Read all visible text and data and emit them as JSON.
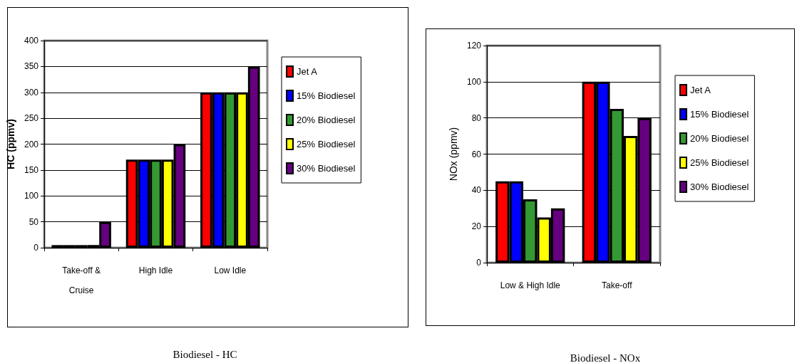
{
  "chart_data": [
    {
      "type": "bar",
      "title": "Biodiesel - HC",
      "ylabel": "HC (ppmv)",
      "categories": [
        "Take-off &\nCruise",
        "High Idle",
        "Low Idle"
      ],
      "series": [
        {
          "name": "Jet A",
          "color": "#ff0000",
          "values": [
            5,
            170,
            300
          ]
        },
        {
          "name": "15% Biodiesel",
          "color": "#0000ff",
          "values": [
            5,
            170,
            300
          ]
        },
        {
          "name": "20% Biodiesel",
          "color": "#339933",
          "values": [
            5,
            170,
            300
          ]
        },
        {
          "name": "25% Biodiesel",
          "color": "#ffff00",
          "values": [
            5,
            170,
            300
          ]
        },
        {
          "name": "30% Biodiesel",
          "color": "#660080",
          "values": [
            50,
            200,
            350
          ]
        }
      ],
      "ylim": [
        0,
        400
      ],
      "yticks": [
        0,
        50,
        100,
        150,
        200,
        250,
        300,
        350,
        400
      ],
      "grid": "y",
      "legend": "right"
    },
    {
      "type": "bar",
      "title": "Biodiesel - NOx",
      "ylabel": "NOx (ppmv)",
      "categories": [
        "Low & High Idle",
        "Take-off"
      ],
      "series": [
        {
          "name": "Jet A",
          "color": "#ff0000",
          "values": [
            45,
            100
          ]
        },
        {
          "name": "15% Biodiesel",
          "color": "#0000ff",
          "values": [
            45,
            100
          ]
        },
        {
          "name": "20% Biodiesel",
          "color": "#339933",
          "values": [
            35,
            85
          ]
        },
        {
          "name": "25% Biodiesel",
          "color": "#ffff00",
          "values": [
            25,
            70
          ]
        },
        {
          "name": "30% Biodiesel",
          "color": "#660080",
          "values": [
            30,
            80
          ]
        }
      ],
      "ylim": [
        0,
        120
      ],
      "yticks": [
        0,
        20,
        40,
        60,
        80,
        100,
        120
      ],
      "grid": "y",
      "legend": "right"
    }
  ]
}
